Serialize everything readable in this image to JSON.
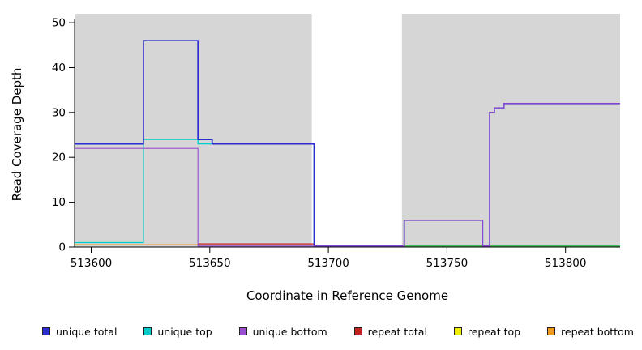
{
  "chart_data": {
    "type": "line",
    "subtype": "step-coverage",
    "title": "",
    "xlabel": "Coordinate in Reference Genome",
    "ylabel": "Read Coverage Depth",
    "xlim": [
      513593,
      513823
    ],
    "ylim": [
      0,
      52
    ],
    "x_ticks": [
      513600,
      513650,
      513700,
      513750,
      513800
    ],
    "y_ticks": [
      0,
      10,
      20,
      30,
      40,
      50
    ],
    "grid": false,
    "legend_position": "bottom",
    "plot_background": "#ffffff",
    "background_regions": [
      {
        "x0": 513593,
        "x1": 513693,
        "color": "#d6d6d6"
      },
      {
        "x0": 513731,
        "x1": 513823,
        "color": "#d6d6d6"
      }
    ],
    "series": [
      {
        "name": "repeat top",
        "color": "#f0f000",
        "width": 1.3,
        "points": []
      },
      {
        "name": "unique top",
        "color": "#00cccc",
        "width": 1.3,
        "points": [
          [
            513593,
            1
          ],
          [
            513622,
            1
          ],
          [
            513622,
            24
          ],
          [
            513645,
            24
          ],
          [
            513645,
            23
          ],
          [
            513694,
            23
          ],
          [
            513694,
            0
          ],
          [
            513823,
            0
          ]
        ]
      },
      {
        "name": "repeat bottom",
        "color": "#f09b1e",
        "width": 1.3,
        "points": [
          [
            513593,
            0.5
          ],
          [
            513645,
            0.5
          ]
        ]
      },
      {
        "name": "repeat total",
        "color": "#c32222",
        "width": 1.3,
        "points": [
          [
            513645,
            0.7
          ],
          [
            513694,
            0.7
          ]
        ]
      },
      {
        "name": "zero baseline",
        "color": "#46b946",
        "width": 1.3,
        "points": [
          [
            513731,
            0
          ],
          [
            513823,
            0
          ]
        ]
      },
      {
        "name": "unique total",
        "color": "#2b2bd0",
        "width": 1.7,
        "points": [
          [
            513593,
            23
          ],
          [
            513622,
            23
          ],
          [
            513622,
            46
          ],
          [
            513645,
            46
          ],
          [
            513645,
            24
          ],
          [
            513651,
            24
          ],
          [
            513651,
            23
          ],
          [
            513694,
            23
          ],
          [
            513694,
            0
          ],
          [
            513732,
            0
          ],
          [
            513732,
            6
          ],
          [
            513765,
            6
          ],
          [
            513765,
            0
          ],
          [
            513768,
            0
          ],
          [
            513768,
            30
          ],
          [
            513770,
            30
          ],
          [
            513770,
            31
          ],
          [
            513774,
            31
          ],
          [
            513774,
            32
          ],
          [
            513823,
            32
          ]
        ]
      },
      {
        "name": "unique bottom",
        "color": "#9a4fd0",
        "width": 1.1,
        "points": [
          [
            513593,
            22
          ],
          [
            513645,
            22
          ],
          [
            513645,
            0
          ],
          [
            513732,
            0
          ],
          [
            513732,
            6
          ],
          [
            513765,
            6
          ],
          [
            513765,
            0
          ],
          [
            513768,
            0
          ],
          [
            513768,
            30
          ],
          [
            513770,
            30
          ],
          [
            513770,
            31
          ],
          [
            513774,
            31
          ],
          [
            513774,
            32
          ],
          [
            513823,
            32
          ]
        ]
      }
    ],
    "legend": [
      {
        "label": "unique total",
        "color": "#2b2bd0"
      },
      {
        "label": "unique top",
        "color": "#00cccc"
      },
      {
        "label": "unique bottom",
        "color": "#9a4fd0"
      },
      {
        "label": "repeat total",
        "color": "#c32222"
      },
      {
        "label": "repeat top",
        "color": "#f0f000"
      },
      {
        "label": "repeat bottom",
        "color": "#f09b1e"
      }
    ]
  }
}
